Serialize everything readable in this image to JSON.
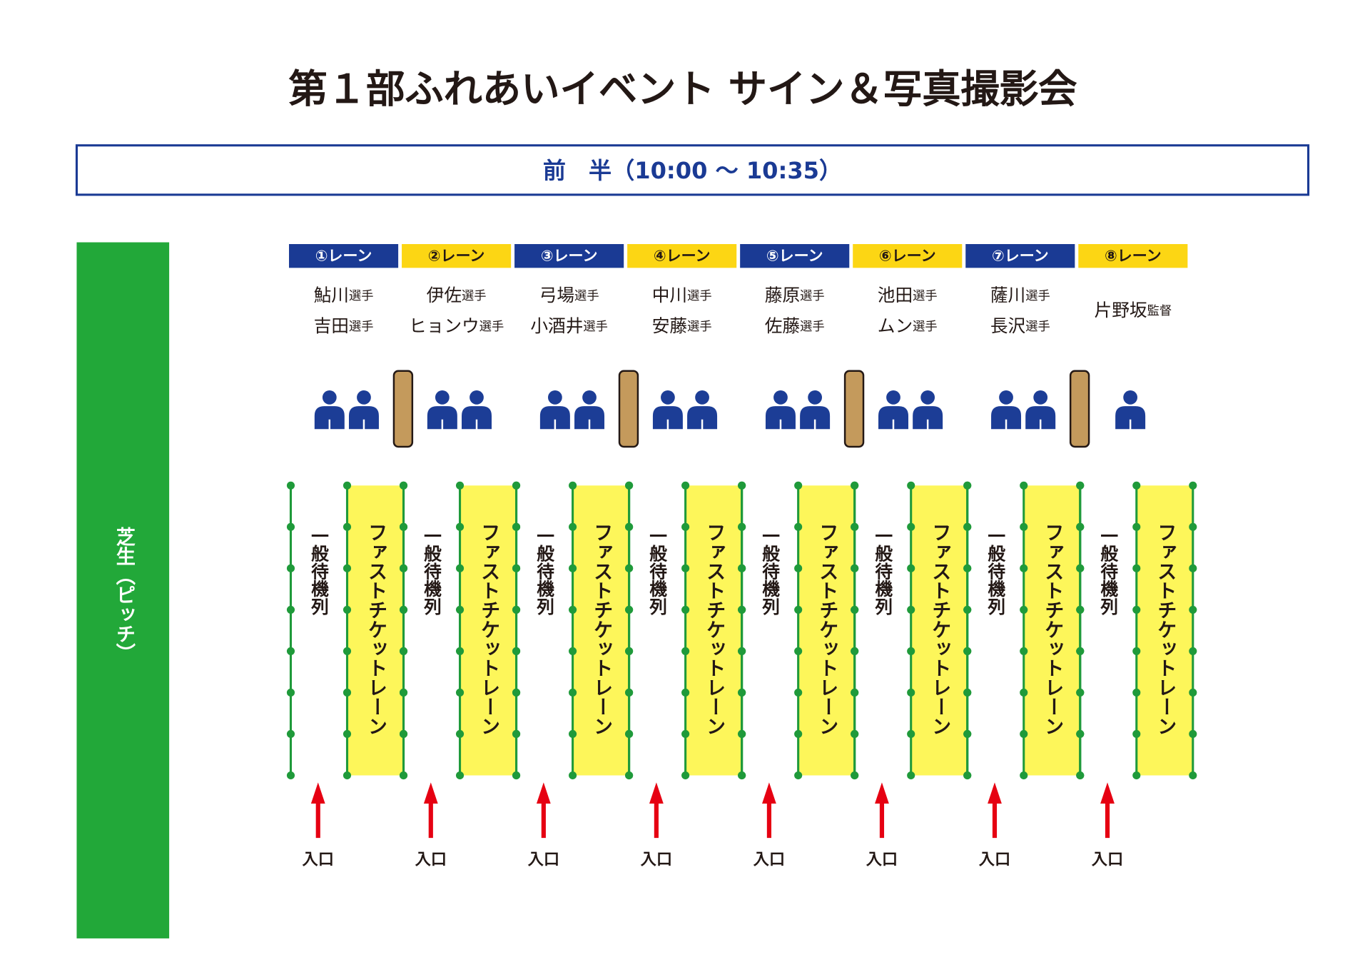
{
  "title": "第１部ふれあいイベント サイン＆写真撮影会",
  "session": "前　半（10:00 ～ 10:35）",
  "pitch_label": "芝生（ピッチ）",
  "lanes": [
    {
      "label": "①レーン",
      "players": [
        {
          "name": "鮎川",
          "role": "選手"
        },
        {
          "name": "吉田",
          "role": "選手"
        }
      ],
      "queue": "一般待機列",
      "fast_lane": "ファストチケットレーン",
      "entrance": "入口"
    },
    {
      "label": "②レーン",
      "players": [
        {
          "name": "伊佐",
          "role": "選手"
        },
        {
          "name": "ヒョンウ",
          "role": "選手"
        }
      ],
      "queue": "一般待機列",
      "fast_lane": "ファストチケットレーン",
      "entrance": "入口"
    },
    {
      "label": "③レーン",
      "players": [
        {
          "name": "弓場",
          "role": "選手"
        },
        {
          "name": "小酒井",
          "role": "選手"
        }
      ],
      "queue": "一般待機列",
      "fast_lane": "ファストチケットレーン",
      "entrance": "入口"
    },
    {
      "label": "④レーン",
      "players": [
        {
          "name": "中川",
          "role": "選手"
        },
        {
          "name": "安藤",
          "role": "選手"
        }
      ],
      "queue": "一般待機列",
      "fast_lane": "ファストチケットレーン",
      "entrance": "入口"
    },
    {
      "label": "⑤レーン",
      "players": [
        {
          "name": "藤原",
          "role": "選手"
        },
        {
          "name": "佐藤",
          "role": "選手"
        }
      ],
      "queue": "一般待機列",
      "fast_lane": "ファストチケットレーン",
      "entrance": "入口"
    },
    {
      "label": "⑥レーン",
      "players": [
        {
          "name": "池田",
          "role": "選手"
        },
        {
          "name": "ムン",
          "role": "選手"
        }
      ],
      "queue": "一般待機列",
      "fast_lane": "ファストチケットレーン",
      "entrance": "入口"
    },
    {
      "label": "⑦レーン",
      "players": [
        {
          "name": "薩川",
          "role": "選手"
        },
        {
          "name": "長沢",
          "role": "選手"
        }
      ],
      "queue": "一般待機列",
      "fast_lane": "ファストチケットレーン",
      "entrance": "入口"
    },
    {
      "label": "⑧レーン",
      "players": [
        {
          "name": "片野坂",
          "role": "監督"
        }
      ],
      "queue": "一般待機列",
      "fast_lane": "ファストチケットレーン",
      "entrance": "入口"
    }
  ]
}
